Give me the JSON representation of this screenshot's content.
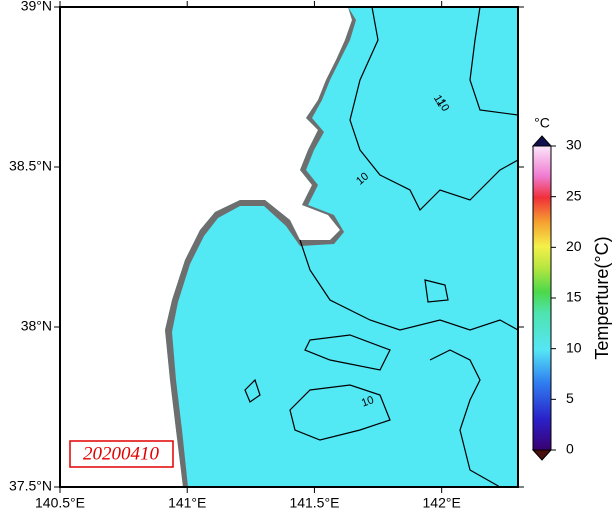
{
  "map": {
    "lonlim": [
      140.5,
      142.3
    ],
    "latlim": [
      37.5,
      39
    ],
    "lon_ticks": [
      {
        "value": 140.5,
        "label": "140.5°E"
      },
      {
        "value": 141,
        "label": "141°E"
      },
      {
        "value": 141.5,
        "label": "141.5°E"
      },
      {
        "value": 142,
        "label": "142°E"
      }
    ],
    "lat_ticks": [
      {
        "value": 37.5,
        "label": "37.5°N"
      },
      {
        "value": 38,
        "label": "38°N"
      },
      {
        "value": 38.5,
        "label": "38.5°N"
      },
      {
        "value": 39,
        "label": "39°N"
      }
    ],
    "date": "20200410",
    "contour_labels": [
      "10",
      "11",
      "10",
      "10"
    ]
  },
  "colorbar": {
    "unit": "°C",
    "title": "Temperture(°C)",
    "lim": [
      0,
      30
    ],
    "ticks": [
      0,
      5,
      10,
      15,
      20,
      25,
      30
    ]
  }
}
